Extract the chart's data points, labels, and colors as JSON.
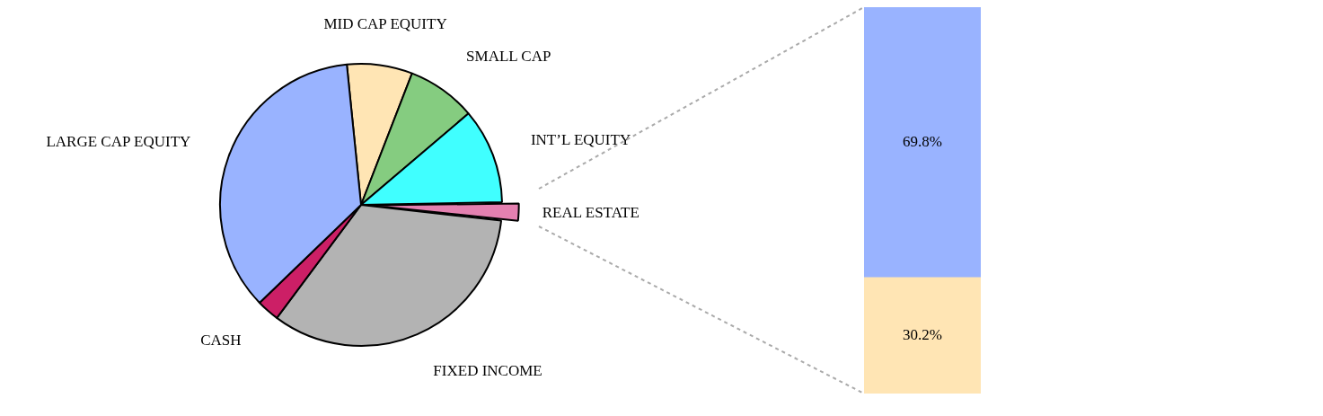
{
  "chart_data": [
    {
      "type": "pie",
      "categories": [
        "MID CAP EQUITY",
        "SMALL CAP",
        "INT’L EQUITY",
        "REAL ESTATE",
        "FIXED INCOME",
        "CASH",
        "LARGE CAP EQUITY"
      ],
      "values": [
        7.5,
        7.9,
        10.9,
        2.1,
        33.4,
        2.6,
        35.6
      ],
      "colors": [
        "#ffe5b4",
        "#85cc80",
        "#40ffff",
        "#e480b0",
        "#b3b3b3",
        "#cc1f66",
        "#99b3ff"
      ]
    },
    {
      "type": "bar",
      "stacked": true,
      "categories": [
        null
      ],
      "series": [
        {
          "color": "#ffe5b4",
          "values": [
            30.2
          ],
          "value_labels": [
            "30.2%"
          ]
        },
        {
          "color": "#99b3ff",
          "values": [
            69.8
          ],
          "value_labels": [
            "69.8%"
          ]
        }
      ]
    }
  ]
}
